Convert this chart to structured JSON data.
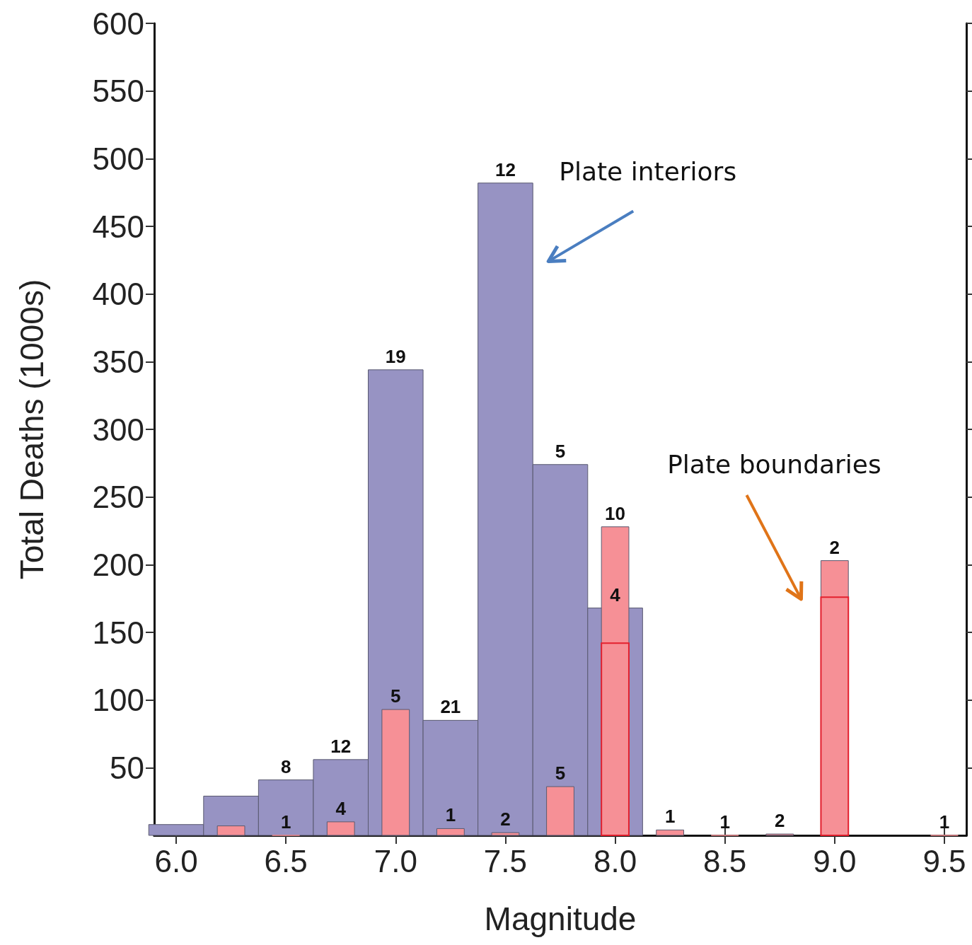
{
  "chart_data": {
    "type": "bar",
    "xlabel": "Magnitude",
    "ylabel": "Total Deaths (1000s)",
    "xlim": [
      5.9,
      9.6
    ],
    "xticks": [
      {
        "value": 6,
        "label": "6.0"
      },
      {
        "value": 6.5,
        "label": "6.5"
      },
      {
        "value": 7,
        "label": "7.0"
      },
      {
        "value": 7.5,
        "label": "7.5"
      },
      {
        "value": 8,
        "label": "8.0"
      },
      {
        "value": 8.5,
        "label": "8.5"
      },
      {
        "value": 9,
        "label": "9.0"
      },
      {
        "value": 9.5,
        "label": "9.5"
      }
    ],
    "ylim": [
      0,
      600
    ],
    "yticks": [
      50,
      100,
      150,
      200,
      250,
      300,
      350,
      400,
      450,
      500,
      550,
      600
    ],
    "grid": false,
    "legend": false,
    "series": [
      {
        "name": "Plate interiors",
        "color": "#9793c3",
        "x": [
          6.0,
          6.25,
          6.5,
          6.75,
          7.0,
          7.25,
          7.5,
          7.75,
          8.0
        ],
        "values": [
          8,
          29,
          41,
          56,
          344,
          85,
          482,
          274,
          168
        ]
      },
      {
        "name": "Plate boundaries",
        "color": "#f69096",
        "x": [
          6.25,
          6.5,
          6.75,
          7.0,
          7.25,
          7.5,
          7.75,
          8.0,
          8.25,
          8.5,
          8.75,
          9.0,
          9.5
        ],
        "values": [
          7,
          0,
          10,
          93,
          5,
          2,
          36,
          228,
          4,
          0,
          1,
          203,
          0
        ]
      },
      {
        "color": "#f69096",
        "x": [
          8.0,
          9.0
        ],
        "values": [
          142,
          176
        ]
      }
    ],
    "annotations": [
      {
        "text": "8",
        "x": 6.5,
        "y": 41
      },
      {
        "text": "12",
        "x": 6.75,
        "y": 56
      },
      {
        "text": "19",
        "x": 7.0,
        "y": 344
      },
      {
        "text": "21",
        "x": 7.25,
        "y": 85
      },
      {
        "text": "12",
        "x": 7.5,
        "y": 482
      },
      {
        "text": "5",
        "x": 7.75,
        "y": 274
      },
      {
        "text": "4",
        "x": 8.0,
        "y": 168
      },
      {
        "text": "1",
        "x": 6.5,
        "y": 0
      },
      {
        "text": "4",
        "x": 6.75,
        "y": 10
      },
      {
        "text": "5",
        "x": 7.0,
        "y": 93
      },
      {
        "text": "1",
        "x": 7.25,
        "y": 5
      },
      {
        "text": "2",
        "x": 7.5,
        "y": 2
      },
      {
        "text": "5",
        "x": 7.75,
        "y": 36
      },
      {
        "text": "10",
        "x": 8.0,
        "y": 228
      },
      {
        "text": "1",
        "x": 8.25,
        "y": 4
      },
      {
        "text": "1",
        "x": 8.5,
        "y": 0
      },
      {
        "text": "2",
        "x": 8.75,
        "y": 1
      },
      {
        "text": "2",
        "x": 9.0,
        "y": 203
      },
      {
        "text": "1",
        "x": 9.5,
        "y": 0
      }
    ]
  }
}
